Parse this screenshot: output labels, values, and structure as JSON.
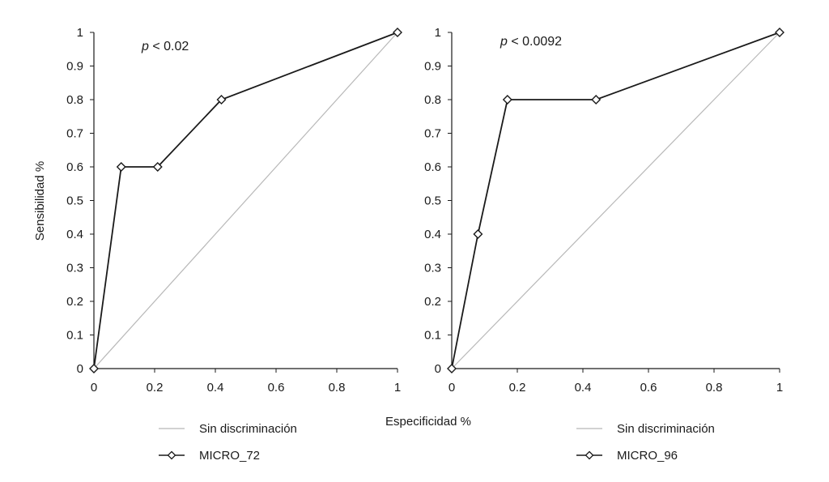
{
  "colors": {
    "axis": "#1a1a1a",
    "series": "#1a1a1a",
    "reference": "#b8b8b8",
    "marker_fill": "#ffffff"
  },
  "shared": {
    "xlabel": "Especificidad %",
    "ylabel": "Sensibilidad %"
  },
  "chart_data": [
    {
      "type": "line",
      "xlim": [
        0,
        1
      ],
      "ylim": [
        0,
        1
      ],
      "x_ticks": [
        0,
        0.2,
        0.4,
        0.6,
        0.8,
        1
      ],
      "x_tick_labels": [
        "0",
        "0.2",
        "0.4",
        "0.6",
        "0.8",
        "1"
      ],
      "y_ticks": [
        0,
        0.1,
        0.2,
        0.3,
        0.4,
        0.5,
        0.6,
        0.7,
        0.8,
        0.9,
        1
      ],
      "y_tick_labels": [
        "0",
        "0.1",
        "0.2",
        "0.3",
        "0.4",
        "0.5",
        "0.6",
        "0.7",
        "0.8",
        "0.9",
        "1"
      ],
      "annotation": {
        "italic": "p",
        "rest": " < 0.02"
      },
      "grid": false,
      "legend_position": "bottom",
      "series": [
        {
          "name": "Sin discriminación",
          "marker": "none",
          "x": [
            0,
            1
          ],
          "y": [
            0,
            1
          ]
        },
        {
          "name": "MICRO_72",
          "marker": "diamond",
          "x": [
            0,
            0.09,
            0.21,
            0.42,
            1
          ],
          "y": [
            0,
            0.6,
            0.6,
            0.8,
            1
          ]
        }
      ]
    },
    {
      "type": "line",
      "xlim": [
        0,
        1
      ],
      "ylim": [
        0,
        1
      ],
      "x_ticks": [
        0,
        0.2,
        0.4,
        0.6,
        0.8,
        1
      ],
      "x_tick_labels": [
        "0",
        "0.2",
        "0.4",
        "0.6",
        "0.8",
        "1"
      ],
      "y_ticks": [
        0,
        0.1,
        0.2,
        0.3,
        0.4,
        0.5,
        0.6,
        0.7,
        0.8,
        0.9,
        1
      ],
      "y_tick_labels": [
        "0",
        "0.1",
        "0.2",
        "0.3",
        "0.4",
        "0.5",
        "0.6",
        "0.7",
        "0.8",
        "0.9",
        "1"
      ],
      "annotation": {
        "italic": "p",
        "rest": " < 0.0092"
      },
      "grid": false,
      "legend_position": "bottom",
      "series": [
        {
          "name": "Sin discriminación",
          "marker": "none",
          "x": [
            0,
            1
          ],
          "y": [
            0,
            1
          ]
        },
        {
          "name": "MICRO_96",
          "marker": "diamond",
          "x": [
            0,
            0.08,
            0.17,
            0.44,
            1
          ],
          "y": [
            0,
            0.4,
            0.8,
            0.8,
            1
          ]
        }
      ]
    }
  ]
}
